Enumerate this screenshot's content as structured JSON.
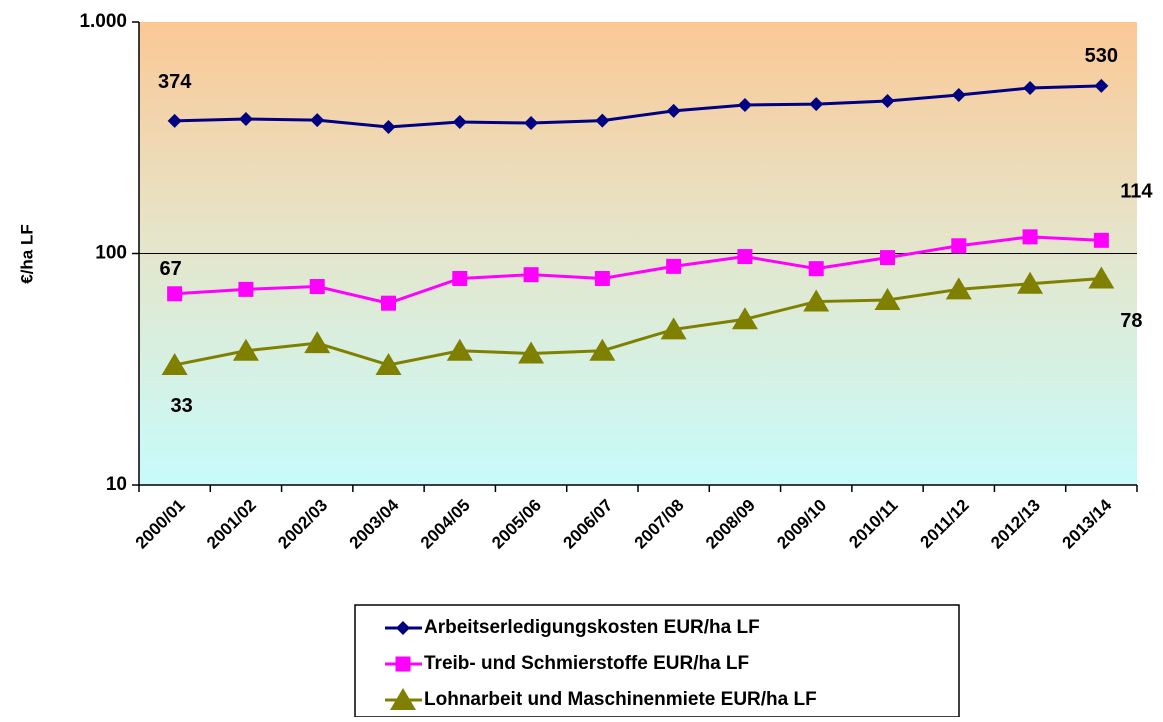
{
  "chart_data": {
    "type": "line",
    "y_label": "€/ha LF",
    "log_scale": true,
    "ylim": [
      10,
      1000
    ],
    "yticks": [
      10,
      100,
      {
        "value": 1000,
        "label": "1.000"
      }
    ],
    "grid": true,
    "categories": [
      "2000/01",
      "2001/02",
      "2002/03",
      "2003/04",
      "2004/05",
      "2005/06",
      "2006/07",
      "2007/08",
      "2008/09",
      "2009/10",
      "2010/11",
      "2011/12",
      "2012/13",
      "2013/14"
    ],
    "series": [
      {
        "name": "Arbeitserledigungskosten EUR/ha LF",
        "color": "#000080",
        "marker": "diamond",
        "values": [
          374,
          381,
          377,
          352,
          370,
          366,
          375,
          413,
          438,
          442,
          456,
          484,
          519,
          530
        ],
        "value_labels": [
          "374",
          null,
          null,
          null,
          null,
          null,
          null,
          null,
          null,
          null,
          null,
          null,
          null,
          "530"
        ]
      },
      {
        "name": "Treib- und Schmierstoffe EUR/ha LF",
        "color": "#ff00ff",
        "marker": "square",
        "values": [
          67,
          70,
          72,
          61,
          78,
          81,
          78,
          88,
          97,
          86,
          96,
          108,
          118,
          114
        ],
        "value_labels": [
          "67",
          null,
          null,
          null,
          null,
          null,
          null,
          null,
          null,
          null,
          null,
          null,
          null,
          "114"
        ]
      },
      {
        "name": "Lohnarbeit und Maschinenmiete EUR/ha LF",
        "color": "#808000",
        "marker": "triangle",
        "values": [
          33,
          38,
          41,
          33,
          38,
          37,
          38,
          47,
          52,
          62,
          63,
          70,
          74,
          78
        ],
        "value_labels": [
          "33",
          null,
          null,
          null,
          null,
          null,
          null,
          null,
          null,
          null,
          null,
          null,
          null,
          "78"
        ]
      }
    ]
  }
}
